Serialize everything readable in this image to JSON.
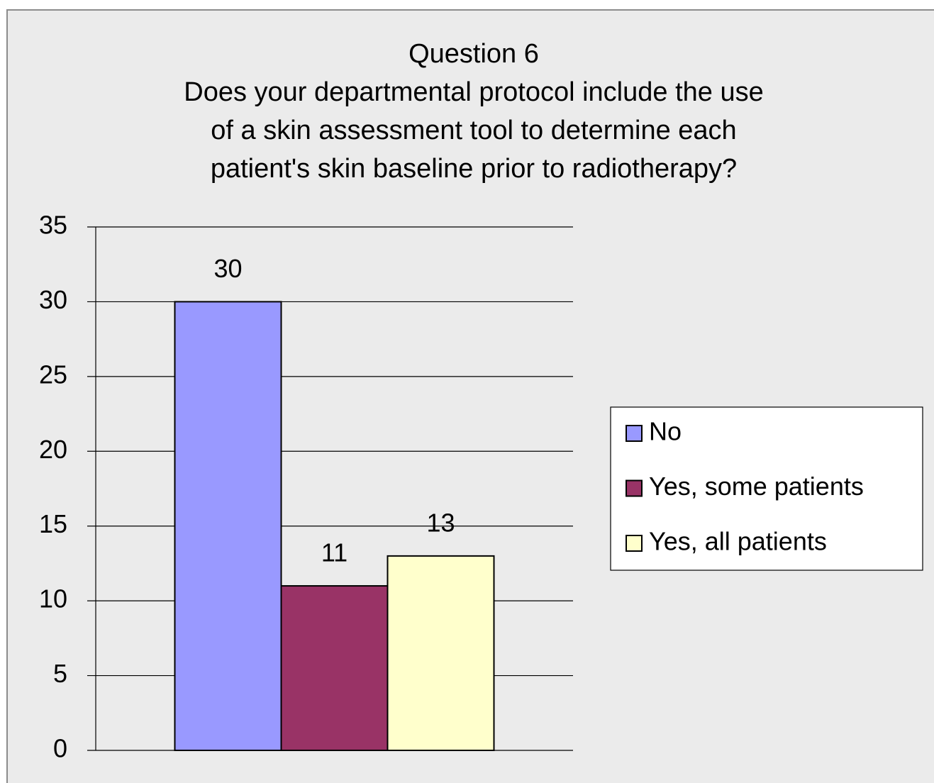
{
  "chart_data": {
    "type": "bar",
    "title": [
      "Question  6",
      "Does your departmental protocol include the use",
      "of a skin assessment tool to determine each",
      "patient's skin baseline prior to radiotherapy?"
    ],
    "categories": [
      null
    ],
    "series": [
      {
        "name": "No",
        "color": "#9999ff",
        "values": [
          30
        ]
      },
      {
        "name": "Yes, some patients",
        "color": "#993366",
        "values": [
          11
        ]
      },
      {
        "name": "Yes, all patients",
        "color": "#ffffcc",
        "values": [
          13
        ]
      }
    ],
    "ylim": [
      0,
      35
    ],
    "yticks": [
      0,
      5,
      10,
      15,
      20,
      25,
      30,
      35
    ],
    "grid": true,
    "legend": "right"
  }
}
